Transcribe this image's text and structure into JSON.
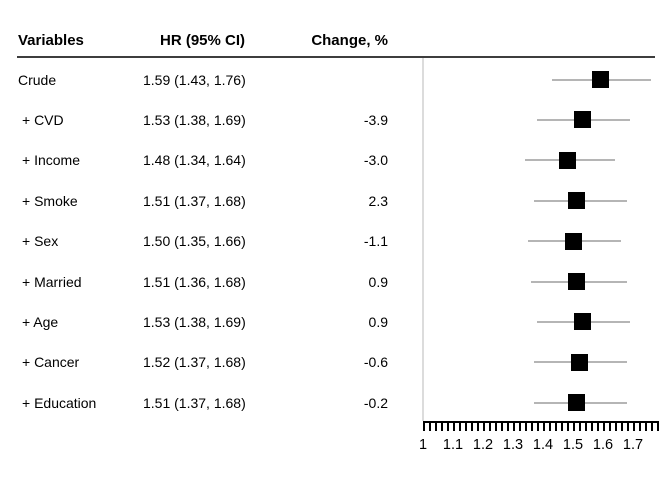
{
  "table": {
    "headers": {
      "variables": "Variables",
      "hr": "HR (95% CI)",
      "change": "Change, %"
    }
  },
  "chart_data": {
    "type": "forest",
    "title": "",
    "xlabel": "",
    "x_axis": {
      "tick_labels": [
        "1",
        "1.1",
        "1.2",
        "1.3",
        "1.4",
        "1.5",
        "1.6",
        "1.7"
      ],
      "tick_values": [
        1.0,
        1.1,
        1.2,
        1.3,
        1.4,
        1.5,
        1.6,
        1.7
      ],
      "minor_tick_step": 0.02,
      "range": [
        1.0,
        1.78
      ],
      "reference_line": 1.0
    },
    "rows": [
      {
        "label": "Crude",
        "hr_text": "1.59 (1.43, 1.76)",
        "change": "",
        "hr": 1.59,
        "lo": 1.43,
        "hi": 1.76
      },
      {
        "label": "+ CVD",
        "hr_text": "1.53 (1.38, 1.69)",
        "change": "-3.9",
        "hr": 1.53,
        "lo": 1.38,
        "hi": 1.69
      },
      {
        "label": "+ Income",
        "hr_text": "1.48 (1.34, 1.64)",
        "change": "-3.0",
        "hr": 1.48,
        "lo": 1.34,
        "hi": 1.64
      },
      {
        "label": "+ Smoke",
        "hr_text": "1.51 (1.37, 1.68)",
        "change": "2.3",
        "hr": 1.51,
        "lo": 1.37,
        "hi": 1.68
      },
      {
        "label": "+ Sex",
        "hr_text": "1.50 (1.35, 1.66)",
        "change": "-1.1",
        "hr": 1.5,
        "lo": 1.35,
        "hi": 1.66
      },
      {
        "label": "+ Married",
        "hr_text": "1.51 (1.36, 1.68)",
        "change": "0.9",
        "hr": 1.51,
        "lo": 1.36,
        "hi": 1.68
      },
      {
        "label": "+ Age",
        "hr_text": "1.53 (1.38, 1.69)",
        "change": "0.9",
        "hr": 1.53,
        "lo": 1.38,
        "hi": 1.69
      },
      {
        "label": "+ Cancer",
        "hr_text": "1.52 (1.37, 1.68)",
        "change": "-0.6",
        "hr": 1.52,
        "lo": 1.37,
        "hi": 1.68
      },
      {
        "label": "+ Education",
        "hr_text": "1.51 (1.37, 1.68)",
        "change": "-0.2",
        "hr": 1.51,
        "lo": 1.37,
        "hi": 1.68
      }
    ],
    "colors": {
      "marker": "#000000",
      "ci_line": "#b5b5b5",
      "reference_line": "#dcdcdc",
      "header_rule": "#3d3d3d",
      "axis": "#000000",
      "text": "#000000",
      "background": "#ffffff"
    },
    "legend": null,
    "grid": false
  }
}
